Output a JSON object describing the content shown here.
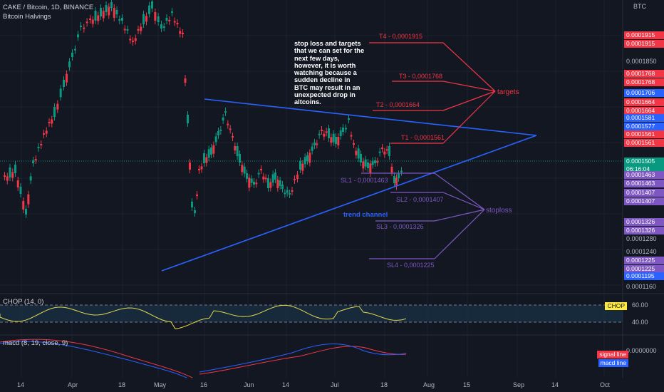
{
  "header": {
    "symbol_line": "CAKE / Bitcoin, 1D, BINANCE",
    "indicator_line": "Bitcoin Halvings",
    "currency": "BTC"
  },
  "note_text": "stop loss and targets that we can set for the next few days, however, it is worth watching because a sudden decline in BTC may result in an unexpected drop in altcoins.",
  "annotations": {
    "targets_label": "targets",
    "stoploss_label": "stoploss",
    "trend_channel_label": "trend channel"
  },
  "levels": {
    "targets": [
      {
        "label": "T4 - 0,0001915",
        "value": 0.0001915
      },
      {
        "label": "T3 - 0,0001768",
        "value": 0.0001768
      },
      {
        "label": "T2 - 0,0001664",
        "value": 0.0001664
      },
      {
        "label": "T1 - 0,0001561",
        "value": 0.0001561
      }
    ],
    "stops": [
      {
        "label": "SL1 - 0,0001463",
        "value": 0.0001463
      },
      {
        "label": "SL2 - 0,0001407",
        "value": 0.0001407
      },
      {
        "label": "SL3 - 0,0001326",
        "value": 0.0001326
      },
      {
        "label": "SL4 - 0,0001225",
        "value": 0.0001225
      }
    ]
  },
  "price_axis": {
    "ticks": [
      "0.0001850",
      "0.0001280",
      "0.0001240",
      "0.0001160"
    ],
    "badges": [
      {
        "text": "0.0001915",
        "color": "#f23645"
      },
      {
        "text": "0.0001915",
        "color": "#f23645"
      },
      {
        "text": "0.0001768",
        "color": "#f23645"
      },
      {
        "text": "0.0001768",
        "color": "#f23645"
      },
      {
        "text": "0.0001706",
        "color": "#2962ff"
      },
      {
        "text": "0.0001664",
        "color": "#f23645"
      },
      {
        "text": "0.0001664",
        "color": "#f23645"
      },
      {
        "text": "0.0001581",
        "color": "#2962ff"
      },
      {
        "text": "0.0001577",
        "color": "#2962ff"
      },
      {
        "text": "0.0001561",
        "color": "#f23645"
      },
      {
        "text": "0.0001561",
        "color": "#f23645"
      },
      {
        "text": "0.0001505",
        "color": "#089981"
      },
      {
        "text": "06:16:04",
        "color": "#089981"
      },
      {
        "text": "0.0001463",
        "color": "#7e57c2"
      },
      {
        "text": "0.0001463",
        "color": "#7e57c2"
      },
      {
        "text": "0.0001407",
        "color": "#7e57c2"
      },
      {
        "text": "0.0001407",
        "color": "#7e57c2"
      },
      {
        "text": "0.0001326",
        "color": "#7e57c2"
      },
      {
        "text": "0.0001326",
        "color": "#7e57c2"
      },
      {
        "text": "0.0001225",
        "color": "#7e57c2"
      },
      {
        "text": "0.0001225",
        "color": "#7e57c2"
      },
      {
        "text": "0.0001195",
        "color": "#2962ff"
      }
    ]
  },
  "chop": {
    "title": "CHOP (14, 0)",
    "upper": "60.00",
    "lower": "40.00",
    "badge": "CHOP",
    "badge_color": "#ffeb3b"
  },
  "macd": {
    "title": "macd (8, 19, close, 9)",
    "zero": "0.0000000",
    "signal_label": "signal line",
    "signal_color": "#f23645",
    "macd_label": "macd line",
    "macd_color": "#2962ff"
  },
  "time_axis": {
    "labels": [
      "14",
      "Apr",
      "18",
      "May",
      "16",
      "Jun",
      "14",
      "Jul",
      "18",
      "Aug",
      "15",
      "Sep",
      "14",
      "Oct"
    ]
  },
  "colors": {
    "up": "#089981",
    "down": "#f23645",
    "trendline": "#2962ff",
    "target": "#f23645",
    "stop": "#7e57c2"
  }
}
